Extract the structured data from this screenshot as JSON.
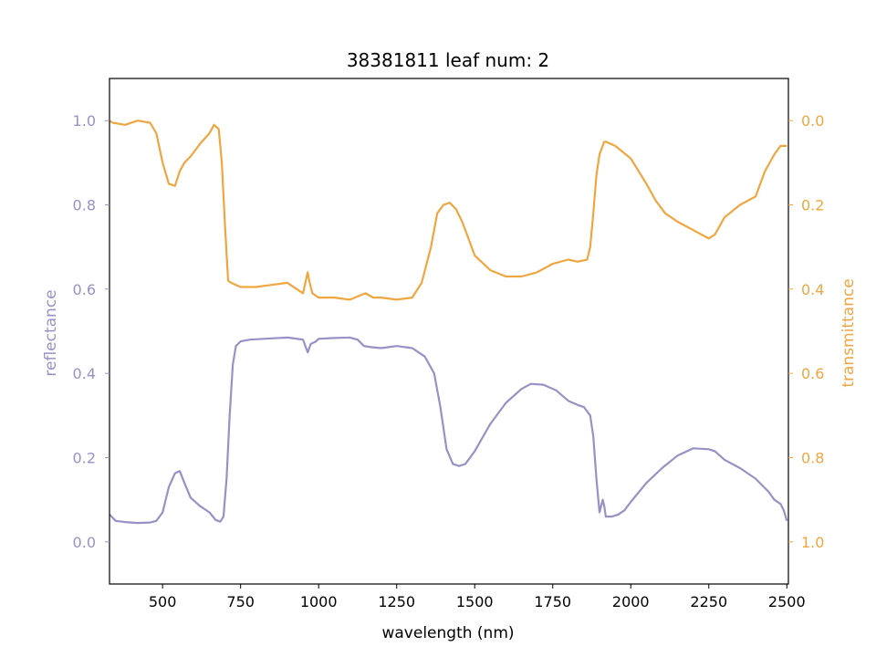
{
  "chart_data": {
    "type": "line",
    "title": "38381811 leaf num: 2",
    "xlabel": "wavelength (nm)",
    "ylabel_left": "reflectance",
    "ylabel_right": "transmittance",
    "xlim": [
      330,
      2505
    ],
    "ylim_left": [
      -0.1,
      1.1
    ],
    "ylim_right": [
      1.1,
      -0.1
    ],
    "right_axis_inverted": true,
    "grid": false,
    "legend": "none",
    "x_ticks": [
      500,
      750,
      1000,
      1250,
      1500,
      1750,
      2000,
      2250,
      2500
    ],
    "x_tick_labels": [
      "500",
      "750",
      "1000",
      "1250",
      "1500",
      "1750",
      "2000",
      "2250",
      "2500"
    ],
    "left_ticks": [
      0.0,
      0.2,
      0.4,
      0.6,
      0.8,
      1.0
    ],
    "left_tick_labels": [
      "0.0",
      "0.2",
      "0.4",
      "0.6",
      "0.8",
      "1.0"
    ],
    "right_ticks": [
      0.0,
      0.2,
      0.4,
      0.6,
      0.8,
      1.0
    ],
    "right_tick_labels": [
      "0.0",
      "0.2",
      "0.4",
      "0.6",
      "0.8",
      "1.0"
    ],
    "colors": {
      "reflectance": "#9791c6",
      "transmittance": "#efa641"
    },
    "series": [
      {
        "axis": "left",
        "x": [
          330,
          350,
          380,
          420,
          460,
          480,
          500,
          520,
          540,
          555,
          570,
          590,
          620,
          650,
          670,
          685,
          695,
          705,
          715,
          725,
          735,
          750,
          780,
          850,
          900,
          950,
          965,
          975,
          990,
          1000,
          1050,
          1100,
          1125,
          1145,
          1170,
          1200,
          1250,
          1300,
          1340,
          1370,
          1390,
          1410,
          1430,
          1450,
          1470,
          1500,
          1550,
          1600,
          1650,
          1680,
          1720,
          1760,
          1800,
          1830,
          1850,
          1870,
          1880,
          1890,
          1900,
          1910,
          1915,
          1920,
          1940,
          1960,
          1980,
          2000,
          2050,
          2100,
          2150,
          2200,
          2250,
          2270,
          2300,
          2350,
          2400,
          2420,
          2440,
          2460,
          2480,
          2490,
          2500
        ],
        "y": [
          0.065,
          0.05,
          0.047,
          0.045,
          0.046,
          0.05,
          0.07,
          0.13,
          0.163,
          0.168,
          0.14,
          0.105,
          0.085,
          0.07,
          0.052,
          0.048,
          0.06,
          0.15,
          0.3,
          0.42,
          0.465,
          0.476,
          0.48,
          0.483,
          0.485,
          0.48,
          0.45,
          0.47,
          0.475,
          0.482,
          0.484,
          0.485,
          0.48,
          0.465,
          0.462,
          0.46,
          0.465,
          0.46,
          0.44,
          0.4,
          0.32,
          0.22,
          0.185,
          0.18,
          0.185,
          0.215,
          0.28,
          0.33,
          0.363,
          0.375,
          0.373,
          0.36,
          0.335,
          0.325,
          0.32,
          0.3,
          0.25,
          0.15,
          0.07,
          0.1,
          0.085,
          0.06,
          0.06,
          0.065,
          0.075,
          0.095,
          0.14,
          0.175,
          0.205,
          0.222,
          0.22,
          0.215,
          0.195,
          0.175,
          0.15,
          0.135,
          0.12,
          0.1,
          0.09,
          0.075,
          0.05
        ]
      },
      {
        "axis": "right",
        "x": [
          330,
          340,
          380,
          420,
          460,
          480,
          500,
          520,
          540,
          555,
          570,
          590,
          620,
          650,
          665,
          680,
          690,
          700,
          710,
          720,
          735,
          750,
          770,
          800,
          850,
          900,
          950,
          965,
          970,
          980,
          1000,
          1050,
          1100,
          1150,
          1175,
          1200,
          1250,
          1300,
          1330,
          1360,
          1380,
          1400,
          1420,
          1440,
          1460,
          1480,
          1500,
          1550,
          1600,
          1650,
          1700,
          1750,
          1800,
          1830,
          1860,
          1870,
          1880,
          1890,
          1900,
          1915,
          1920,
          1950,
          2000,
          2050,
          2080,
          2110,
          2150,
          2200,
          2250,
          2270,
          2300,
          2350,
          2400,
          2430,
          2460,
          2480,
          2500
        ],
        "y": [
          0.0,
          0.005,
          0.01,
          0.0,
          0.005,
          0.03,
          0.1,
          0.15,
          0.155,
          0.12,
          0.1,
          0.085,
          0.055,
          0.03,
          0.01,
          0.02,
          0.1,
          0.25,
          0.38,
          0.385,
          0.39,
          0.395,
          0.395,
          0.395,
          0.39,
          0.385,
          0.41,
          0.36,
          0.38,
          0.41,
          0.42,
          0.42,
          0.425,
          0.41,
          0.42,
          0.42,
          0.425,
          0.42,
          0.385,
          0.3,
          0.22,
          0.2,
          0.195,
          0.21,
          0.24,
          0.28,
          0.32,
          0.355,
          0.37,
          0.37,
          0.36,
          0.34,
          0.33,
          0.335,
          0.33,
          0.3,
          0.22,
          0.13,
          0.08,
          0.05,
          0.05,
          0.06,
          0.09,
          0.15,
          0.19,
          0.22,
          0.24,
          0.26,
          0.28,
          0.27,
          0.23,
          0.2,
          0.18,
          0.12,
          0.08,
          0.06,
          0.06
        ]
      }
    ]
  }
}
